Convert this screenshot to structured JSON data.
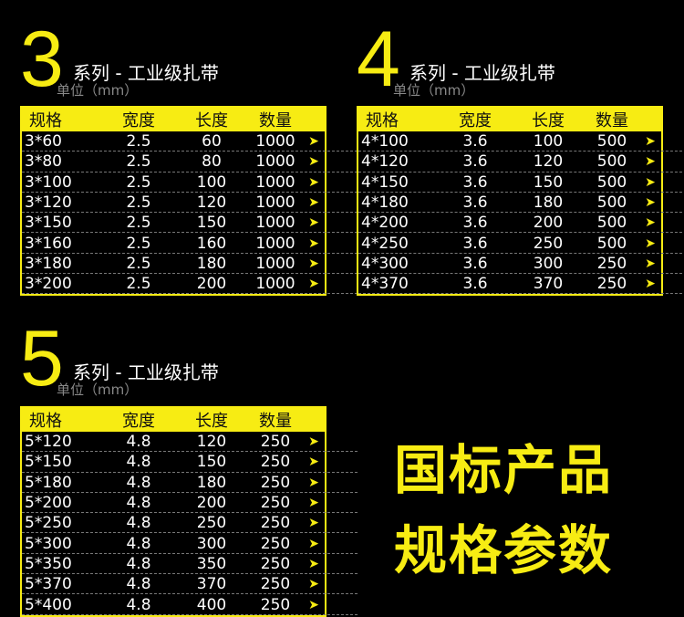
{
  "header": {
    "col_spec": "规格",
    "col_width": "宽度",
    "col_length": "长度",
    "col_qty": "数量"
  },
  "accent": "#f7ec13",
  "arrow_icon": "➤",
  "sections": [
    {
      "number": "3",
      "title": "系列 - 工业级扎带",
      "unit": "单位（mm）",
      "rows": [
        [
          "3*60",
          "2.5",
          "60",
          "1000"
        ],
        [
          "3*80",
          "2.5",
          "80",
          "1000"
        ],
        [
          "3*100",
          "2.5",
          "100",
          "1000"
        ],
        [
          "3*120",
          "2.5",
          "120",
          "1000"
        ],
        [
          "3*150",
          "2.5",
          "150",
          "1000"
        ],
        [
          "3*160",
          "2.5",
          "160",
          "1000"
        ],
        [
          "3*180",
          "2.5",
          "180",
          "1000"
        ],
        [
          "3*200",
          "2.5",
          "200",
          "1000"
        ]
      ]
    },
    {
      "number": "4",
      "title": "系列 - 工业级扎带",
      "unit": "单位（mm）",
      "rows": [
        [
          "4*100",
          "3.6",
          "100",
          "500"
        ],
        [
          "4*120",
          "3.6",
          "120",
          "500"
        ],
        [
          "4*150",
          "3.6",
          "150",
          "500"
        ],
        [
          "4*180",
          "3.6",
          "180",
          "500"
        ],
        [
          "4*200",
          "3.6",
          "200",
          "500"
        ],
        [
          "4*250",
          "3.6",
          "250",
          "500"
        ],
        [
          "4*300",
          "3.6",
          "300",
          "250"
        ],
        [
          "4*370",
          "3.6",
          "370",
          "250"
        ]
      ]
    },
    {
      "number": "5",
      "title": "系列 - 工业级扎带",
      "unit": "单位（mm）",
      "rows": [
        [
          "5*120",
          "4.8",
          "120",
          "250"
        ],
        [
          "5*150",
          "4.8",
          "150",
          "250"
        ],
        [
          "5*180",
          "4.8",
          "180",
          "250"
        ],
        [
          "5*200",
          "4.8",
          "200",
          "250"
        ],
        [
          "5*250",
          "4.8",
          "250",
          "250"
        ],
        [
          "5*300",
          "4.8",
          "300",
          "250"
        ],
        [
          "5*350",
          "4.8",
          "350",
          "250"
        ],
        [
          "5*370",
          "4.8",
          "370",
          "250"
        ],
        [
          "5*400",
          "4.8",
          "400",
          "250"
        ]
      ]
    }
  ],
  "slogan": {
    "line1": "国标产品",
    "line2": "规格参数"
  }
}
